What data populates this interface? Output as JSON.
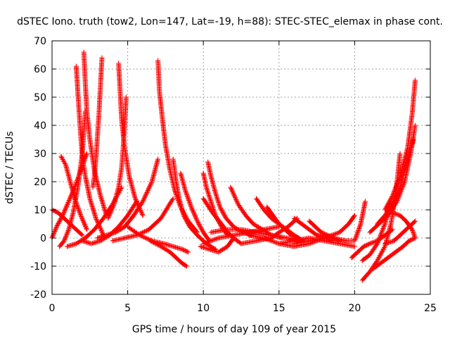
{
  "chart_data": {
    "type": "scatter",
    "title": "dSTEC Iono. truth (tow2, Lon=147, Lat=-19, h=88): STEC-STEC_elemax in phase cont.",
    "xlabel": "GPS time / hours of day 109 of year 2015",
    "ylabel": "dSTEC  / TECUs",
    "xlim": [
      0,
      25
    ],
    "ylim": [
      -20,
      70
    ],
    "xticks": [
      0,
      5,
      10,
      15,
      20,
      25
    ],
    "yticks": [
      -20,
      -10,
      0,
      10,
      20,
      30,
      40,
      50,
      60,
      70
    ],
    "grid": true,
    "marker": "+",
    "color": "#ff0000",
    "series": [
      {
        "x": [
          0.5,
          0.8,
          1.1,
          1.4,
          1.7,
          2.0,
          2.2
        ],
        "y": [
          -3,
          -1,
          3,
          9,
          18,
          30,
          45
        ]
      },
      {
        "x": [
          1.6,
          1.7,
          1.8,
          1.9,
          2.0,
          2.2,
          2.5,
          2.9,
          3.4
        ],
        "y": [
          61,
          52,
          44,
          36,
          29,
          22,
          14,
          7,
          1
        ]
      },
      {
        "x": [
          2.1,
          2.2,
          2.3,
          2.5,
          2.8,
          3.2,
          3.6
        ],
        "y": [
          66,
          55,
          45,
          35,
          24,
          15,
          8
        ]
      },
      {
        "x": [
          3.3,
          3.2,
          3.1,
          3.0,
          2.9,
          2.8,
          2.7
        ],
        "y": [
          64,
          54,
          44,
          36,
          28,
          22,
          18
        ]
      },
      {
        "x": [
          4.4,
          4.5,
          4.6,
          4.8,
          5.1,
          5.5,
          6.0
        ],
        "y": [
          62,
          52,
          42,
          32,
          22,
          14,
          8
        ]
      },
      {
        "x": [
          4.9,
          4.8,
          4.7,
          4.6,
          4.4,
          4.1,
          3.7
        ],
        "y": [
          50,
          40,
          32,
          25,
          18,
          12,
          7
        ]
      },
      {
        "x": [
          7.0,
          7.1,
          7.3,
          7.5,
          7.8,
          8.1,
          8.5,
          9.0,
          9.6
        ],
        "y": [
          63,
          52,
          42,
          33,
          24,
          17,
          11,
          6,
          2
        ]
      },
      {
        "x": [
          0.0,
          0.4,
          0.8,
          1.2,
          1.6,
          2.0
        ],
        "y": [
          10,
          9,
          7,
          5,
          3,
          1
        ]
      },
      {
        "x": [
          0.0,
          0.3,
          0.7,
          1.1,
          1.5,
          1.9,
          2.3
        ],
        "y": [
          0,
          4,
          8,
          13,
          18,
          24,
          30
        ]
      },
      {
        "x": [
          0.6,
          0.9,
          1.2,
          1.5,
          1.9,
          2.3
        ],
        "y": [
          29,
          26,
          20,
          14,
          8,
          3
        ]
      },
      {
        "x": [
          1.0,
          1.6,
          2.2,
          2.8,
          3.4,
          4.0,
          4.6
        ],
        "y": [
          -3,
          -2,
          0,
          3,
          7,
          12,
          18
        ]
      },
      {
        "x": [
          2.0,
          2.6,
          3.2,
          3.8,
          4.4,
          5.0,
          5.6
        ],
        "y": [
          -1,
          -2,
          -1,
          1,
          4,
          8,
          13
        ]
      },
      {
        "x": [
          3.0,
          3.6,
          4.2,
          4.8,
          5.4,
          6.0,
          6.6,
          7.0
        ],
        "y": [
          0,
          1,
          2,
          4,
          8,
          13,
          20,
          28
        ]
      },
      {
        "x": [
          4.0,
          4.8,
          5.6,
          6.4,
          7.2,
          8.0
        ],
        "y": [
          -1,
          0,
          1,
          3,
          7,
          14
        ]
      },
      {
        "x": [
          5.0,
          5.8,
          6.6,
          7.4,
          8.0,
          8.6,
          9.0
        ],
        "y": [
          4,
          1,
          -1,
          -2,
          -3,
          -4,
          -5
        ]
      },
      {
        "x": [
          6.5,
          7.2,
          7.8,
          8.2,
          8.6,
          8.9
        ],
        "y": [
          -1,
          -3,
          -5,
          -7,
          -9,
          -10
        ]
      },
      {
        "x": [
          8.0,
          8.2,
          8.4,
          8.7,
          9.1,
          9.6,
          10.2,
          10.8
        ],
        "y": [
          28,
          20,
          14,
          8,
          4,
          1,
          -2,
          -4
        ]
      },
      {
        "x": [
          8.5,
          8.8,
          9.2,
          9.6,
          10.0,
          10.4
        ],
        "y": [
          23,
          17,
          11,
          6,
          2,
          -1
        ]
      },
      {
        "x": [
          10.0,
          10.2,
          10.5,
          10.8,
          11.2,
          11.6
        ],
        "y": [
          23,
          18,
          13,
          8,
          4,
          1
        ]
      },
      {
        "x": [
          10.3,
          10.5,
          10.8,
          11.1,
          11.5,
          12.0,
          12.6,
          13.2
        ],
        "y": [
          27,
          22,
          16,
          11,
          7,
          4,
          2,
          1
        ]
      },
      {
        "x": [
          10.0,
          10.6,
          11.2,
          11.6,
          12.0,
          12.5
        ],
        "y": [
          14,
          9,
          5,
          2,
          0,
          -2
        ]
      },
      {
        "x": [
          9.8,
          10.4,
          11.0,
          11.6,
          12.0
        ],
        "y": [
          -3,
          -4,
          -5,
          -3,
          0
        ]
      },
      {
        "x": [
          11.8,
          12.3,
          12.8,
          13.3,
          13.9,
          14.5,
          15.2
        ],
        "y": [
          18,
          12,
          8,
          5,
          3,
          1,
          0
        ]
      },
      {
        "x": [
          10.5,
          11.5,
          12.5,
          13.5,
          14.5,
          15.5,
          16.5
        ],
        "y": [
          2,
          3,
          3,
          2,
          1,
          0,
          -1
        ]
      },
      {
        "x": [
          10.0,
          11.0,
          12.0,
          13.0,
          14.0,
          15.0
        ],
        "y": [
          -2,
          0,
          1,
          2,
          3,
          4
        ]
      },
      {
        "x": [
          13.5,
          14.0,
          14.5,
          15.0,
          15.5,
          16.0,
          16.6
        ],
        "y": [
          14,
          10,
          7,
          5,
          3,
          1,
          -1
        ]
      },
      {
        "x": [
          14.2,
          14.6,
          15.0,
          15.4,
          15.8,
          16.3
        ],
        "y": [
          11,
          8,
          5,
          3,
          1,
          0
        ]
      },
      {
        "x": [
          12.5,
          13.5,
          14.5,
          15.0,
          15.6,
          16.2
        ],
        "y": [
          -2,
          -1,
          0,
          2,
          4,
          7
        ]
      },
      {
        "x": [
          13.0,
          14.0,
          15.0,
          16.0,
          17.0,
          18.0
        ],
        "y": [
          1,
          0,
          -2,
          -3,
          -2,
          0
        ]
      },
      {
        "x": [
          15.0,
          16.0,
          17.0,
          18.0,
          19.0,
          20.0
        ],
        "y": [
          -2,
          -1,
          0,
          -1,
          -2,
          -3
        ]
      },
      {
        "x": [
          16.0,
          16.5,
          17.0,
          17.5,
          18.0,
          18.5
        ],
        "y": [
          7,
          5,
          3,
          1,
          0,
          -1
        ]
      },
      {
        "x": [
          17.0,
          17.4,
          17.8,
          18.2,
          18.6,
          19.0
        ],
        "y": [
          6,
          4,
          2,
          1,
          0,
          -1
        ]
      },
      {
        "x": [
          16.0,
          17.0,
          18.0,
          19.0,
          19.6,
          20.0
        ],
        "y": [
          -2,
          -1,
          0,
          2,
          5,
          8
        ]
      },
      {
        "x": [
          17.5,
          18.5,
          19.5,
          20.0,
          20.4,
          20.7
        ],
        "y": [
          1,
          0,
          -1,
          -1,
          5,
          13
        ]
      },
      {
        "x": [
          19.8,
          20.2,
          20.6,
          21.0,
          21.5,
          22.0,
          22.5
        ],
        "y": [
          -7,
          -5,
          -3,
          -2,
          -1,
          1,
          3
        ]
      },
      {
        "x": [
          20.5,
          21.0,
          21.5,
          22.0,
          22.4,
          22.7,
          23.0
        ],
        "y": [
          -15,
          -12,
          -8,
          -3,
          5,
          15,
          30
        ]
      },
      {
        "x": [
          21.2,
          21.7,
          22.2,
          22.7,
          23.2,
          23.6,
          24.0
        ],
        "y": [
          -11,
          -9,
          -7,
          -5,
          -3,
          -1,
          0
        ]
      },
      {
        "x": [
          21.0,
          21.6,
          22.2,
          22.8,
          23.3,
          23.7,
          24.0
        ],
        "y": [
          2,
          5,
          8,
          13,
          20,
          30,
          40
        ]
      },
      {
        "x": [
          21.5,
          22.0,
          22.5,
          23.0,
          23.5,
          23.9
        ],
        "y": [
          5,
          8,
          12,
          18,
          28,
          35
        ]
      },
      {
        "x": [
          22.0,
          22.5,
          23.0,
          23.5,
          23.8,
          24.0
        ],
        "y": [
          10,
          15,
          22,
          32,
          44,
          56
        ]
      },
      {
        "x": [
          22.5,
          23.0,
          23.4,
          23.8,
          24.0
        ],
        "y": [
          9,
          8,
          6,
          3,
          0
        ]
      },
      {
        "x": [
          22.0,
          22.6,
          23.2,
          23.6,
          24.0
        ],
        "y": [
          -2,
          -1,
          2,
          4,
          6
        ]
      },
      {
        "x": [
          20.5,
          21.0,
          21.5,
          22.0,
          22.4
        ],
        "y": [
          -8,
          -6,
          -2,
          5,
          13
        ]
      }
    ]
  }
}
